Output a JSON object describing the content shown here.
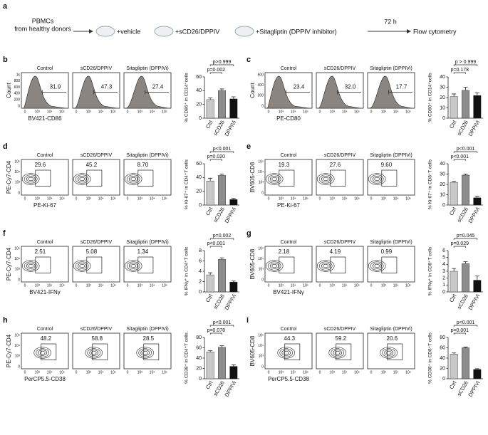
{
  "panel_a": {
    "label": "a",
    "source": [
      "PBMCs",
      "from healthy donors"
    ],
    "conditions": [
      "+vehicle",
      "+sCD26/DPPIV",
      "+Sitagliptin (DPPIV inhibitor)"
    ],
    "time": "72 h",
    "readout": "Flow cytometry"
  },
  "panels": [
    {
      "label": "b",
      "kind": "histogram",
      "plot_titles": [
        "Control",
        "sCD26/DPPIV",
        "Sitagliptin (DPPIVi)"
      ],
      "gates": [
        "31.9",
        "47.3",
        "27.4"
      ],
      "y_label": "Count",
      "x_label": "BV421-CD86",
      "flow_yticks": [
        "0",
        "200",
        "400",
        "600",
        "800",
        "1k"
      ],
      "flow_xticks": [
        "0",
        "10³",
        "10⁴",
        "10⁵"
      ],
      "chart_data": {
        "type": "bar",
        "y_label": "% CD86⁺ in CD14⁺cells",
        "categories": [
          "Ctrl",
          "sCD26",
          "DPPIVi"
        ],
        "values": [
          27,
          40,
          28
        ],
        "errors": [
          2.5,
          2.5,
          3
        ],
        "colors": [
          "#c8c8c8",
          "#8c8c8c",
          "#111111"
        ],
        "ylim": [
          0,
          60
        ],
        "yticks": [
          0,
          20,
          40,
          60
        ],
        "pvalues": [
          "p=0.002",
          "p>0.999"
        ]
      }
    },
    {
      "label": "c",
      "kind": "histogram",
      "plot_titles": [
        "Control",
        "sCD26/DPPIV",
        "Sitagliptin (DPPIVi)"
      ],
      "gates": [
        "23.4",
        "32.0",
        "17.7"
      ],
      "y_label": "Count",
      "x_label": "PE-CD80",
      "flow_yticks": [
        "0",
        "200",
        "400",
        "600"
      ],
      "flow_xticks": [
        "0",
        "10³",
        "10⁴",
        "10⁵"
      ],
      "chart_data": {
        "type": "bar",
        "y_label": "% CD80⁺ in CD14⁺cells",
        "categories": [
          "Ctrl",
          "sCD26",
          "DPPIVi"
        ],
        "values": [
          21,
          27,
          22
        ],
        "errors": [
          2.5,
          3,
          2.5
        ],
        "colors": [
          "#c8c8c8",
          "#8c8c8c",
          "#111111"
        ],
        "ylim": [
          0,
          40
        ],
        "yticks": [
          0,
          10,
          20,
          30,
          40
        ],
        "pvalues": [
          "p=0.178",
          "p > 0.999"
        ]
      }
    },
    {
      "label": "d",
      "kind": "contour",
      "plot_titles": [
        "Control",
        "sCD26/DPPIV",
        "Sitagliptin (DPPIVi)"
      ],
      "gates": [
        "29.6",
        "45.2",
        "8.70"
      ],
      "y_label": "PE-Cy7-CD4",
      "x_label": "PE-Ki-67",
      "flow_yticks": [
        "0",
        "10³",
        "10⁴",
        "10⁵"
      ],
      "flow_xticks": [
        "0",
        "10³",
        "10⁴",
        "10⁵"
      ],
      "chart_data": {
        "type": "bar",
        "y_label": "% Ki-67⁺ in CD4⁺T cells",
        "categories": [
          "Ctrl",
          "sCD26",
          "DPPIVi"
        ],
        "values": [
          35,
          43,
          8
        ],
        "errors": [
          4,
          2,
          1.5
        ],
        "colors": [
          "#c8c8c8",
          "#8c8c8c",
          "#111111"
        ],
        "ylim": [
          0,
          60
        ],
        "yticks": [
          0,
          20,
          40,
          60
        ],
        "pvalues": [
          "p=0.020",
          "p<0.001"
        ]
      }
    },
    {
      "label": "e",
      "kind": "contour",
      "plot_titles": [
        "Control",
        "sCD26/DPPIV",
        "Sitagliptin (DPPIVi)"
      ],
      "gates": [
        "19.3",
        "27.6",
        "9.60"
      ],
      "y_label": "BV605-CD8",
      "x_label": "PE-Ki-67",
      "flow_yticks": [
        "0",
        "10³",
        "10⁴",
        "10⁵"
      ],
      "flow_xticks": [
        "0",
        "10³",
        "10⁴",
        "10⁵"
      ],
      "chart_data": {
        "type": "bar",
        "y_label": "% Ki-67⁺ in CD8⁺T cells",
        "categories": [
          "Ctrl",
          "sCD26",
          "DPPIVi"
        ],
        "values": [
          22,
          29,
          7
        ],
        "errors": [
          1,
          1,
          1.5
        ],
        "colors": [
          "#c8c8c8",
          "#8c8c8c",
          "#111111"
        ],
        "ylim": [
          0,
          40
        ],
        "yticks": [
          0,
          10,
          20,
          30,
          40
        ],
        "pvalues": [
          "p<0.001",
          "p<0.001"
        ]
      }
    },
    {
      "label": "f",
      "kind": "contour",
      "plot_titles": [
        "Control",
        "sCD26/DPPIV",
        "Sitagliptin (DPPIVi)"
      ],
      "gates": [
        "2.51",
        "5.08",
        "1.34"
      ],
      "y_label": "PE-Cy7-CD4",
      "x_label": "BV421-IFNγ",
      "flow_yticks": [
        "0",
        "10³",
        "10⁴",
        "10⁵"
      ],
      "flow_xticks": [
        "0",
        "10³",
        "10⁴",
        "10⁵"
      ],
      "chart_data": {
        "type": "bar",
        "y_label": "% IFNγ⁺ in CD4⁺T cells",
        "categories": [
          "Ctrl",
          "sCD26",
          "DPPIVi"
        ],
        "values": [
          3.3,
          6.3,
          1.9
        ],
        "errors": [
          0.4,
          0.3,
          0.2
        ],
        "colors": [
          "#c8c8c8",
          "#8c8c8c",
          "#111111"
        ],
        "ylim": [
          0,
          8
        ],
        "yticks": [
          0,
          2,
          4,
          6,
          8
        ],
        "pvalues": [
          "p<0.001",
          "p=0.002"
        ]
      }
    },
    {
      "label": "g",
      "kind": "contour",
      "plot_titles": [
        "Control",
        "sCD26/DPPIV",
        "Sitagliptin (DPPIVi)"
      ],
      "gates": [
        "2.18",
        "4.19",
        "0.99"
      ],
      "y_label": "BV605-CD8",
      "x_label": "BV421-IFNγ",
      "flow_yticks": [
        "0",
        "10³",
        "10⁴",
        "10⁵"
      ],
      "flow_xticks": [
        "0",
        "10³",
        "10⁴",
        "10⁵"
      ],
      "chart_data": {
        "type": "bar",
        "y_label": "% IFNγ⁺ in CD8⁺T cells",
        "categories": [
          "Ctrl",
          "sCD26",
          "DPPIVi"
        ],
        "values": [
          3.0,
          4.1,
          1.7
        ],
        "errors": [
          0.4,
          0.3,
          0.6
        ],
        "colors": [
          "#c8c8c8",
          "#8c8c8c",
          "#111111"
        ],
        "ylim": [
          0,
          6
        ],
        "yticks": [
          0,
          1,
          2,
          3,
          4,
          5,
          6
        ],
        "pvalues": [
          "p=0.029",
          "p=0.045"
        ]
      }
    },
    {
      "label": "h",
      "kind": "contour",
      "plot_titles": [
        "Control",
        "sCD26/DPPIV",
        "Sitagliptin (DPPIVi)"
      ],
      "gates": [
        "48.2",
        "58.8",
        "28.5"
      ],
      "y_label": "PE-Cy7-CD4",
      "x_label": "PerCP5.5-CD38",
      "flow_yticks": [
        "0",
        "10³",
        "10⁴",
        "10⁵"
      ],
      "flow_xticks": [
        "0",
        "10³",
        "10⁴",
        "10⁵"
      ],
      "chart_data": {
        "type": "bar",
        "y_label": "% CD38⁺ in CD4⁺T cells",
        "categories": [
          "Ctrl",
          "sCD26",
          "DPPIVi"
        ],
        "values": [
          52,
          61,
          24
        ],
        "errors": [
          2.5,
          3,
          3
        ],
        "colors": [
          "#c8c8c8",
          "#8c8c8c",
          "#111111"
        ],
        "ylim": [
          0,
          80
        ],
        "yticks": [
          0,
          20,
          40,
          60,
          80
        ],
        "pvalues": [
          "p=0.078",
          "p<0.001"
        ]
      }
    },
    {
      "label": "i",
      "kind": "contour",
      "plot_titles": [
        "Control",
        "sCD26/DPPIV",
        "Sitagliptin (DPPIVi)"
      ],
      "gates": [
        "44.3",
        "59.2",
        "20.6"
      ],
      "y_label": "BV605-CD8",
      "x_label": "PerCP5.5-CD38",
      "flow_yticks": [
        "0",
        "10³",
        "10⁴",
        "10⁵"
      ],
      "flow_xticks": [
        "0",
        "10³",
        "10⁴",
        "10⁵"
      ],
      "chart_data": {
        "type": "bar",
        "y_label": "% CD38⁺ in CD8⁺T cells",
        "categories": [
          "Ctrl",
          "sCD26",
          "DPPIVi"
        ],
        "values": [
          48,
          60,
          18
        ],
        "errors": [
          2,
          1.5,
          1.5
        ],
        "colors": [
          "#c8c8c8",
          "#8c8c8c",
          "#111111"
        ],
        "ylim": [
          0,
          80
        ],
        "yticks": [
          0,
          20,
          40,
          60,
          80
        ],
        "pvalues": [
          "p=0.001",
          "p<0.001"
        ]
      }
    }
  ]
}
